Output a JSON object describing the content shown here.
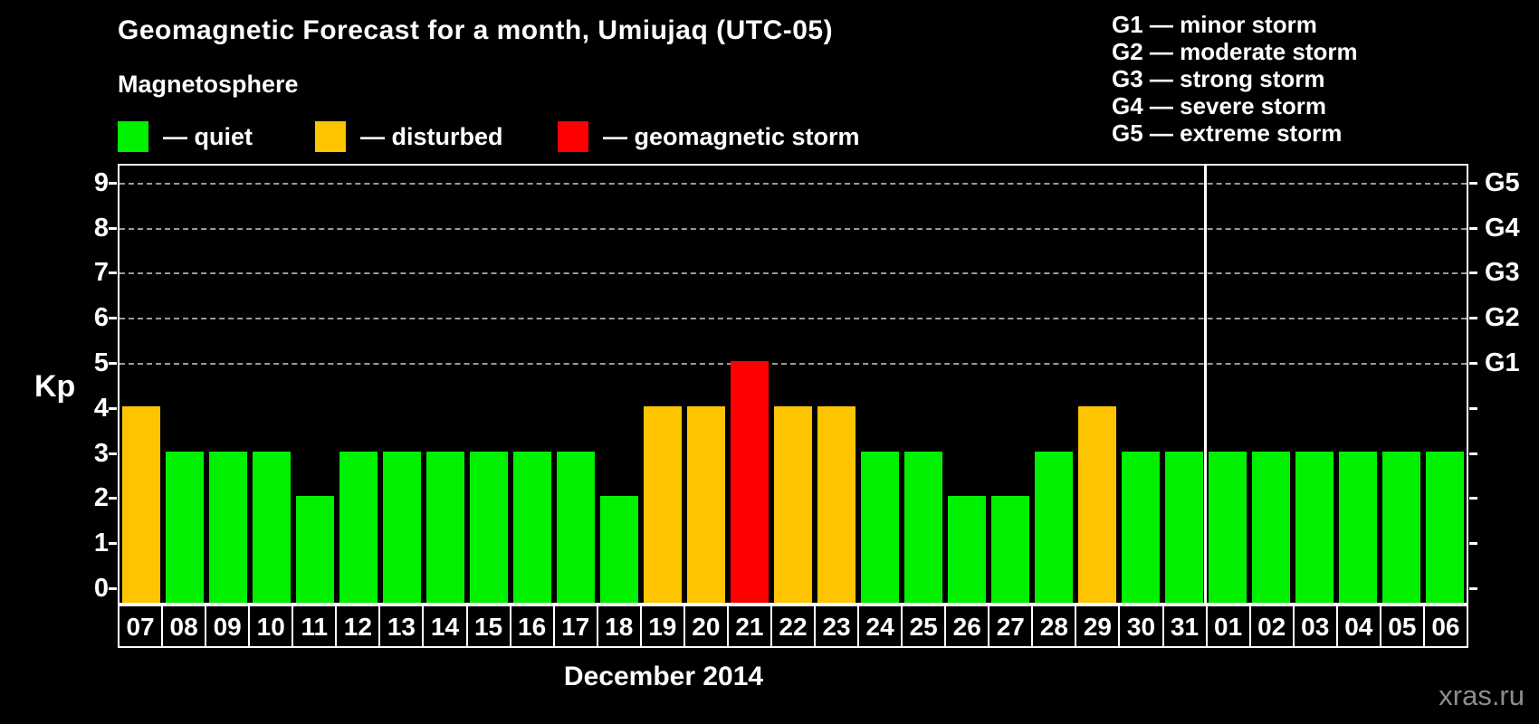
{
  "title": "Geomagnetic Forecast for a month, Umiujaq (UTC-05)",
  "legend": {
    "heading": "Magnetosphere",
    "items": [
      {
        "name": "quiet",
        "label": "— quiet",
        "color": "#00f000"
      },
      {
        "name": "disturbed",
        "label": "— disturbed",
        "color": "#ffc400"
      },
      {
        "name": "geomagnetic-storm",
        "label": "— geomagnetic storm",
        "color": "#ff0000"
      }
    ]
  },
  "storm_scale_legend": [
    "G1 — minor storm",
    "G2 — moderate storm",
    "G3 — strong storm",
    "G4 — severe storm",
    "G5 — extreme storm"
  ],
  "axes": {
    "y_label": "Kp",
    "y_ticks": [
      0,
      1,
      2,
      3,
      4,
      5,
      6,
      7,
      8,
      9
    ],
    "right_scale_labels": [
      {
        "value": 5,
        "label": "G1"
      },
      {
        "value": 6,
        "label": "G2"
      },
      {
        "value": 7,
        "label": "G3"
      },
      {
        "value": 8,
        "label": "G4"
      },
      {
        "value": 9,
        "label": "G5"
      }
    ],
    "x_label": "December 2014"
  },
  "watermark": "xras.ru",
  "chart_data": {
    "type": "bar",
    "title": "Geomagnetic Forecast for a month, Umiujaq (UTC-05)",
    "xlabel": "December 2014",
    "ylabel": "Kp",
    "ylim": [
      0,
      9
    ],
    "grid": "dashed horizontal lines at Kp 5-9 (G1-G5)",
    "gridlines_at": [
      5,
      6,
      7,
      8,
      9
    ],
    "legend_position": "top",
    "month_separator_after_index": 24,
    "categories": [
      "07",
      "08",
      "09",
      "10",
      "11",
      "12",
      "13",
      "14",
      "15",
      "16",
      "17",
      "18",
      "19",
      "20",
      "21",
      "22",
      "23",
      "24",
      "25",
      "26",
      "27",
      "28",
      "29",
      "30",
      "31",
      "01",
      "02",
      "03",
      "04",
      "05",
      "06"
    ],
    "values": [
      4,
      3,
      3,
      3,
      2,
      3,
      3,
      3,
      3,
      3,
      3,
      2,
      4,
      4,
      5,
      4,
      4,
      3,
      3,
      2,
      2,
      3,
      4,
      3,
      3,
      3,
      3,
      3,
      3,
      3,
      3
    ],
    "statuses": [
      "disturbed",
      "quiet",
      "quiet",
      "quiet",
      "quiet",
      "quiet",
      "quiet",
      "quiet",
      "quiet",
      "quiet",
      "quiet",
      "quiet",
      "disturbed",
      "disturbed",
      "storm",
      "disturbed",
      "disturbed",
      "quiet",
      "quiet",
      "quiet",
      "quiet",
      "quiet",
      "disturbed",
      "quiet",
      "quiet",
      "quiet",
      "quiet",
      "quiet",
      "quiet",
      "quiet",
      "quiet"
    ],
    "status_colors": {
      "quiet": "#00f000",
      "disturbed": "#ffc400",
      "storm": "#ff0000"
    }
  }
}
